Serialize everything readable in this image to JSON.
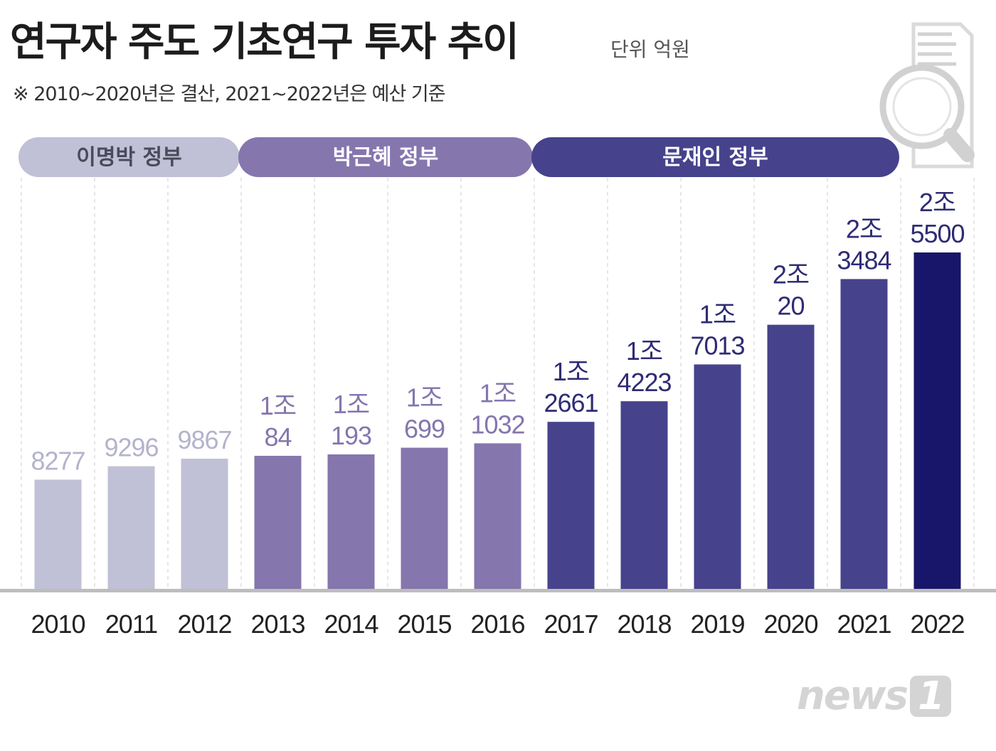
{
  "header": {
    "title": "연구자 주도 기초연구 투자 추이",
    "unit": "단위 억원",
    "note": "※ 2010~2020년은 결산, 2021~2022년은 예산 기준"
  },
  "watermark": {
    "text": "news",
    "mark": "1"
  },
  "colors": {
    "lee": "#c0c0d6",
    "park": "#8576ae",
    "moon": "#46428c",
    "final": "#18166a",
    "lee_label": "#b3b3cc",
    "park_label": "#8576ae",
    "moon_label": "#2f2c74",
    "axis": "#bdbdbd",
    "grid": "#dddddd",
    "year_text": "#222222"
  },
  "chart_data": {
    "type": "bar",
    "title": "연구자 주도 기초연구 투자 추이",
    "unit": "억원",
    "categories": [
      "2010",
      "2011",
      "2012",
      "2013",
      "2014",
      "2015",
      "2016",
      "2017",
      "2018",
      "2019",
      "2020",
      "2021",
      "2022"
    ],
    "values": [
      8277,
      9296,
      9867,
      10084,
      10193,
      10699,
      11032,
      12661,
      14223,
      17013,
      20020,
      23484,
      25500
    ],
    "labels": [
      [
        "8277"
      ],
      [
        "9296"
      ],
      [
        "9867"
      ],
      [
        "1조",
        "84"
      ],
      [
        "1조",
        "193"
      ],
      [
        "1조",
        "699"
      ],
      [
        "1조",
        "1032"
      ],
      [
        "1조",
        "2661"
      ],
      [
        "1조",
        "4223"
      ],
      [
        "1조",
        "7013"
      ],
      [
        "2조",
        "20"
      ],
      [
        "2조",
        "3484"
      ],
      [
        "2조",
        "5500"
      ]
    ],
    "governments": [
      {
        "name": "이명박 정부",
        "years": [
          "2010",
          "2011",
          "2012"
        ],
        "color_key": "lee"
      },
      {
        "name": "박근혜 정부",
        "years": [
          "2013",
          "2014",
          "2015",
          "2016"
        ],
        "color_key": "park"
      },
      {
        "name": "문재인 정부",
        "years": [
          "2017",
          "2018",
          "2019",
          "2020",
          "2021",
          "2022"
        ],
        "color_key": "moon"
      }
    ],
    "ylim": [
      0,
      26000
    ],
    "xlabel": "",
    "ylabel": "",
    "grid": true
  }
}
